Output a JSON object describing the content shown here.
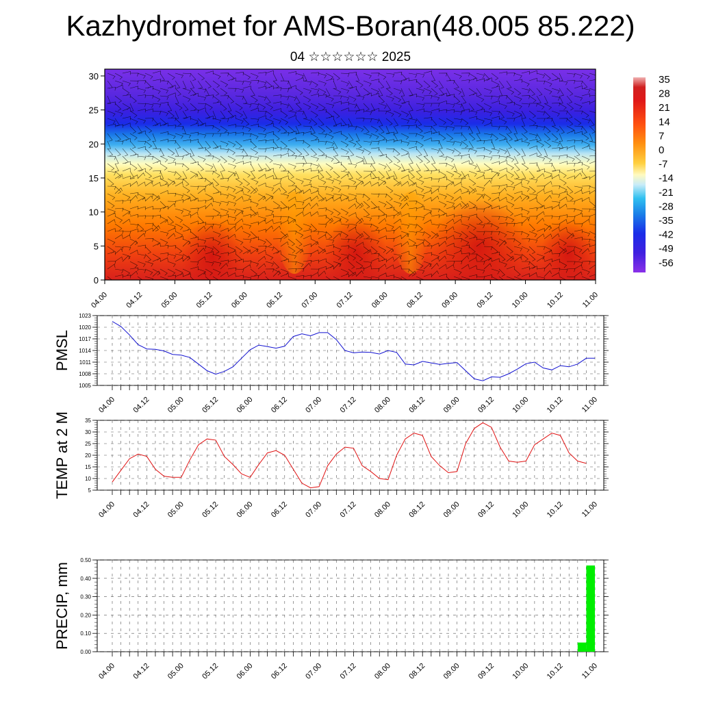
{
  "page": {
    "title": "Kazhydromet for AMS-Boran(48.005 85.222)",
    "subtitle": "04 ☆☆☆☆☆☆ 2025"
  },
  "time_labels": [
    "04.00",
    "04.12",
    "05.00",
    "05.12",
    "06.00",
    "06.12",
    "07.00",
    "07.12",
    "08.00",
    "08.12",
    "09.00",
    "09.12",
    "10.00",
    "10.12",
    "11.00"
  ],
  "chart_data": [
    {
      "type": "heatmap",
      "title": "",
      "xlabel": "",
      "ylabel": "",
      "ylim": [
        0,
        31
      ],
      "yticks": [
        0,
        5,
        10,
        15,
        20,
        25,
        30
      ],
      "colorbar": {
        "labels": [
          "35",
          "28",
          "21",
          "14",
          "7",
          "0",
          "-7",
          "-14",
          "-21",
          "-28",
          "-35",
          "-42",
          "-49",
          "-56"
        ],
        "range": [
          -60,
          37
        ]
      },
      "overlay": "wind barbs",
      "description_values": {
        "note": "temperature field vs height level and time"
      }
    },
    {
      "type": "line",
      "ylabel": "PMSL",
      "ylim": [
        1005,
        1023
      ],
      "yticks": [
        "1005",
        "1008",
        "1011",
        "1014",
        "1017",
        "1020",
        "1023"
      ],
      "color": "#1010d0",
      "x": [
        0,
        3,
        6,
        9,
        12,
        15,
        18,
        21,
        24,
        27,
        30,
        33,
        36,
        39,
        42,
        45,
        48,
        51,
        54,
        57,
        60,
        63,
        66,
        69,
        72,
        75,
        78,
        81,
        84,
        87,
        90,
        93,
        96,
        99,
        102,
        105,
        108,
        111,
        114,
        117,
        120,
        123,
        126,
        129,
        132,
        135,
        138,
        141,
        144,
        147,
        150,
        153,
        156,
        159,
        162,
        165,
        168
      ],
      "values": [
        1021.5,
        1020.2,
        1018.0,
        1015.5,
        1014.4,
        1014.3,
        1013.9,
        1013.0,
        1012.8,
        1012.2,
        1010.5,
        1008.8,
        1007.9,
        1008.6,
        1009.8,
        1012.0,
        1014.2,
        1015.4,
        1015.0,
        1014.6,
        1015.1,
        1017.6,
        1018.3,
        1017.8,
        1018.6,
        1018.6,
        1016.8,
        1014.0,
        1013.4,
        1013.6,
        1013.5,
        1013.1,
        1014.0,
        1013.5,
        1010.5,
        1010.3,
        1011.2,
        1010.8,
        1010.4,
        1010.7,
        1010.9,
        1008.8,
        1006.7,
        1006.2,
        1007.2,
        1007.1,
        1008.0,
        1009.2,
        1010.6,
        1011.0,
        1009.5,
        1009.0,
        1010.1,
        1009.8,
        1010.5,
        1012.0,
        1012.0
      ]
    },
    {
      "type": "line",
      "ylabel": "TEMP at 2 M",
      "ylim": [
        5,
        35
      ],
      "yticks": [
        "5",
        "10",
        "15",
        "20",
        "25",
        "30",
        "35"
      ],
      "color": "#e01010",
      "x": [
        0,
        3,
        6,
        9,
        12,
        15,
        18,
        21,
        24,
        27,
        30,
        33,
        36,
        39,
        42,
        45,
        48,
        51,
        54,
        57,
        60,
        63,
        66,
        69,
        72,
        75,
        78,
        81,
        84,
        87,
        90,
        93,
        96,
        99,
        102,
        105,
        108,
        111,
        114,
        117,
        120,
        123,
        126,
        129,
        132,
        135,
        138,
        141,
        144,
        147,
        150,
        153,
        156,
        159,
        162,
        165
      ],
      "values": [
        8.5,
        13.5,
        18.5,
        20.5,
        19.5,
        14.0,
        11.0,
        10.5,
        10.5,
        18.0,
        24.5,
        27.0,
        26.5,
        19.5,
        16.0,
        12.0,
        10.5,
        16.0,
        21.0,
        22.0,
        20.0,
        14.0,
        8.0,
        6.0,
        6.5,
        15.5,
        20.5,
        23.5,
        23.0,
        15.5,
        13.0,
        10.0,
        9.5,
        20.0,
        27.0,
        29.5,
        28.5,
        19.5,
        15.5,
        12.5,
        13.0,
        25.0,
        31.5,
        34.0,
        32.0,
        23.5,
        17.5,
        17.0,
        17.5,
        24.5,
        27.0,
        29.5,
        28.5,
        21.0,
        17.5,
        16.5
      ]
    },
    {
      "type": "bar",
      "ylabel": "PRECIP, mm",
      "ylim": [
        0,
        0.5
      ],
      "yticks": [
        "0.00",
        "0.10",
        "0.20",
        "0.30",
        "0.40",
        "0.50"
      ],
      "color": "#00ee00",
      "x": [
        163.5,
        166.5
      ],
      "values": [
        0.05,
        0.47
      ]
    }
  ]
}
